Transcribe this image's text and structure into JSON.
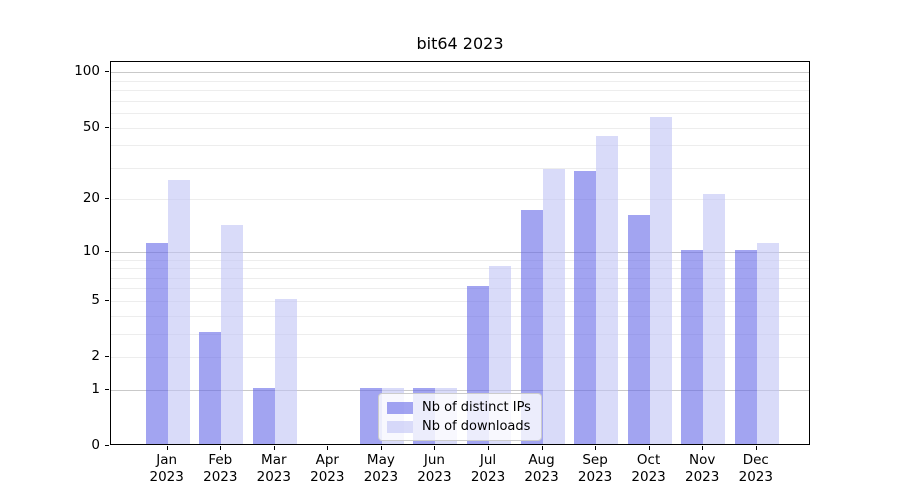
{
  "title": "bit64 2023",
  "colors": {
    "bar_distinct_ips": "rgba(100,103,232,0.6)",
    "bar_downloads": "rgba(192,195,245,0.6)",
    "bar_distinct_ips_solid": "#a2a5f1",
    "bar_downloads_solid": "#d9dbf9",
    "grid_minor": "#ededed",
    "grid_major": "#c9c9c9",
    "spine": "#000000"
  },
  "legend": {
    "items": [
      {
        "label": "Nb of distinct IPs",
        "swatch": "bar_distinct_ips"
      },
      {
        "label": "Nb of downloads",
        "swatch": "bar_downloads"
      }
    ]
  },
  "chart_data": {
    "type": "bar",
    "title": "bit64 2023",
    "categories": [
      "Jan",
      "Feb",
      "Mar",
      "Apr",
      "May",
      "Jun",
      "Jul",
      "Aug",
      "Sep",
      "Oct",
      "Nov",
      "Dec"
    ],
    "x_tick_year": "2023",
    "series": [
      {
        "name": "Nb of distinct IPs",
        "color_key": "bar_distinct_ips",
        "values": [
          11,
          3,
          1,
          0,
          1,
          1,
          6,
          17,
          28,
          16,
          10,
          10
        ]
      },
      {
        "name": "Nb of downloads",
        "color_key": "bar_downloads",
        "values": [
          25,
          14,
          5,
          0,
          1,
          1,
          8,
          29,
          44,
          56,
          21,
          11
        ]
      }
    ],
    "xlabel": "",
    "ylabel": "",
    "y_scale": "log10(1+v)",
    "ylim": [
      0,
      113
    ],
    "y_tick_values": [
      0,
      1,
      2,
      5,
      10,
      20,
      50,
      100
    ],
    "y_minor_gridlines": [
      2,
      3,
      4,
      5,
      6,
      7,
      8,
      9,
      20,
      30,
      40,
      50,
      60,
      70,
      80,
      90
    ],
    "y_major_gridlines": [
      1,
      10,
      100
    ],
    "grid": true,
    "legend_position": "lower center"
  }
}
